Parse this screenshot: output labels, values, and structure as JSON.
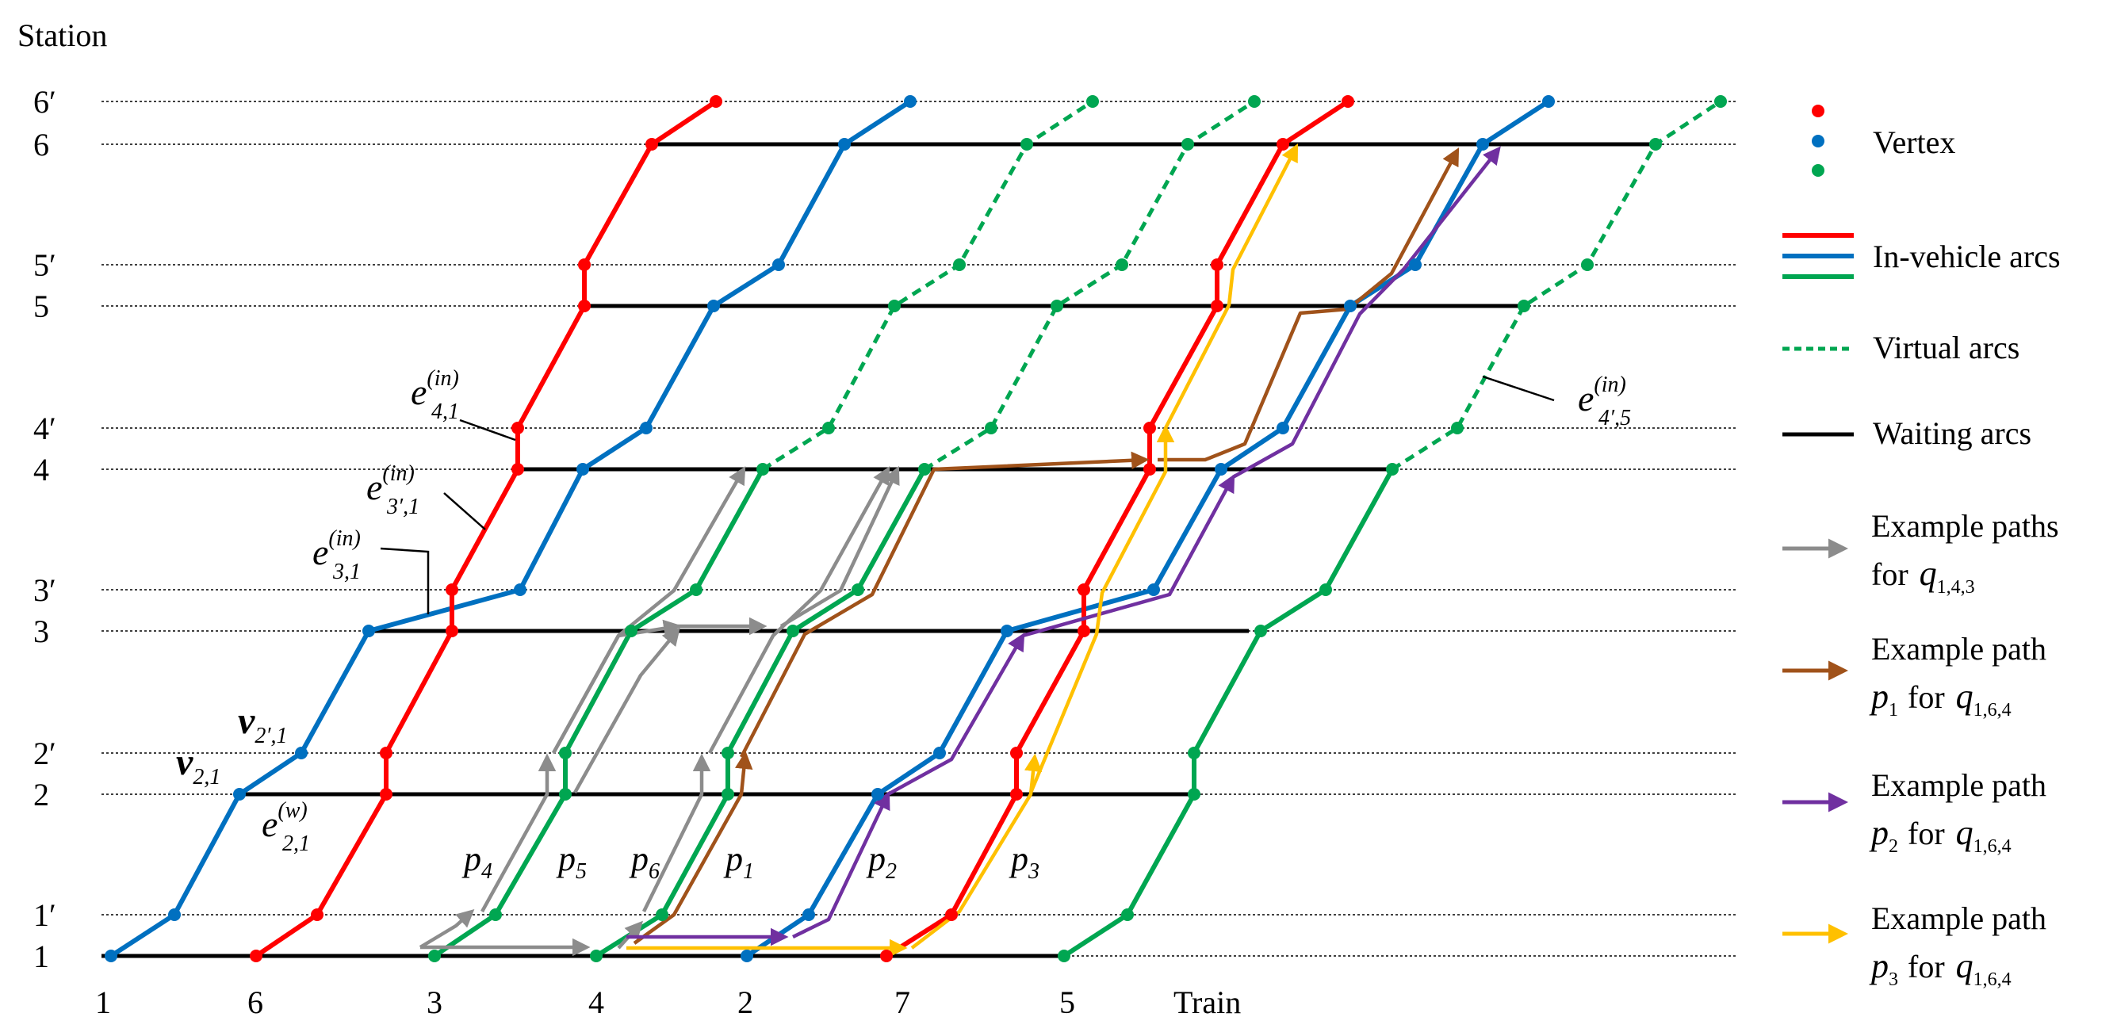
{
  "y_axis_title": "Station",
  "x_axis_title": "Train",
  "stations": [
    "1",
    "1′",
    "2",
    "2′",
    "3",
    "3′",
    "4",
    "4′",
    "5",
    "5′",
    "6",
    "6′"
  ],
  "trains": [
    "1",
    "6",
    "3",
    "4",
    "2",
    "7",
    "5"
  ],
  "colors": {
    "red": "#ff0000",
    "blue": "#0070c0",
    "green": "#00a651",
    "gray": "#8c8c8c",
    "brown": "#a0521a",
    "purple": "#7030a0",
    "yellow": "#ffc000",
    "black": "#000000"
  },
  "legend": {
    "vertex": "Vertex",
    "in_vehicle": "In-vehicle arcs",
    "virtual": "Virtual arcs",
    "waiting": "Waiting arcs",
    "example_paths_line1": "Example paths",
    "example_paths_for": "for",
    "example_path_line1": "Example path",
    "for": "for",
    "q_base": "q",
    "q143_sub": "1,4,3",
    "q164_sub": "1,6,4",
    "p_base": "p",
    "p1_sub": "1",
    "p2_sub": "2",
    "p3_sub": "3"
  },
  "annotations": {
    "e_base": "e",
    "e41_sup": "(in)",
    "e41_sub": "4,1",
    "e3p1_sup": "(in)",
    "e3p1_sub": "3′,1",
    "e31_sup": "(in)",
    "e31_sub": "3,1",
    "e21_sup": "(w)",
    "e21_sub": "2,1",
    "e4p5_sup": "(in)",
    "e4p5_sub": "4′,5",
    "v_base": "v",
    "v2p1_sub": "2′,1",
    "v21_sub": "2,1"
  },
  "path_labels": [
    {
      "base": "p",
      "sub": "4"
    },
    {
      "base": "p",
      "sub": "5"
    },
    {
      "base": "p",
      "sub": "6"
    },
    {
      "base": "p",
      "sub": "1"
    },
    {
      "base": "p",
      "sub": "2"
    },
    {
      "base": "p",
      "sub": "3"
    }
  ]
}
